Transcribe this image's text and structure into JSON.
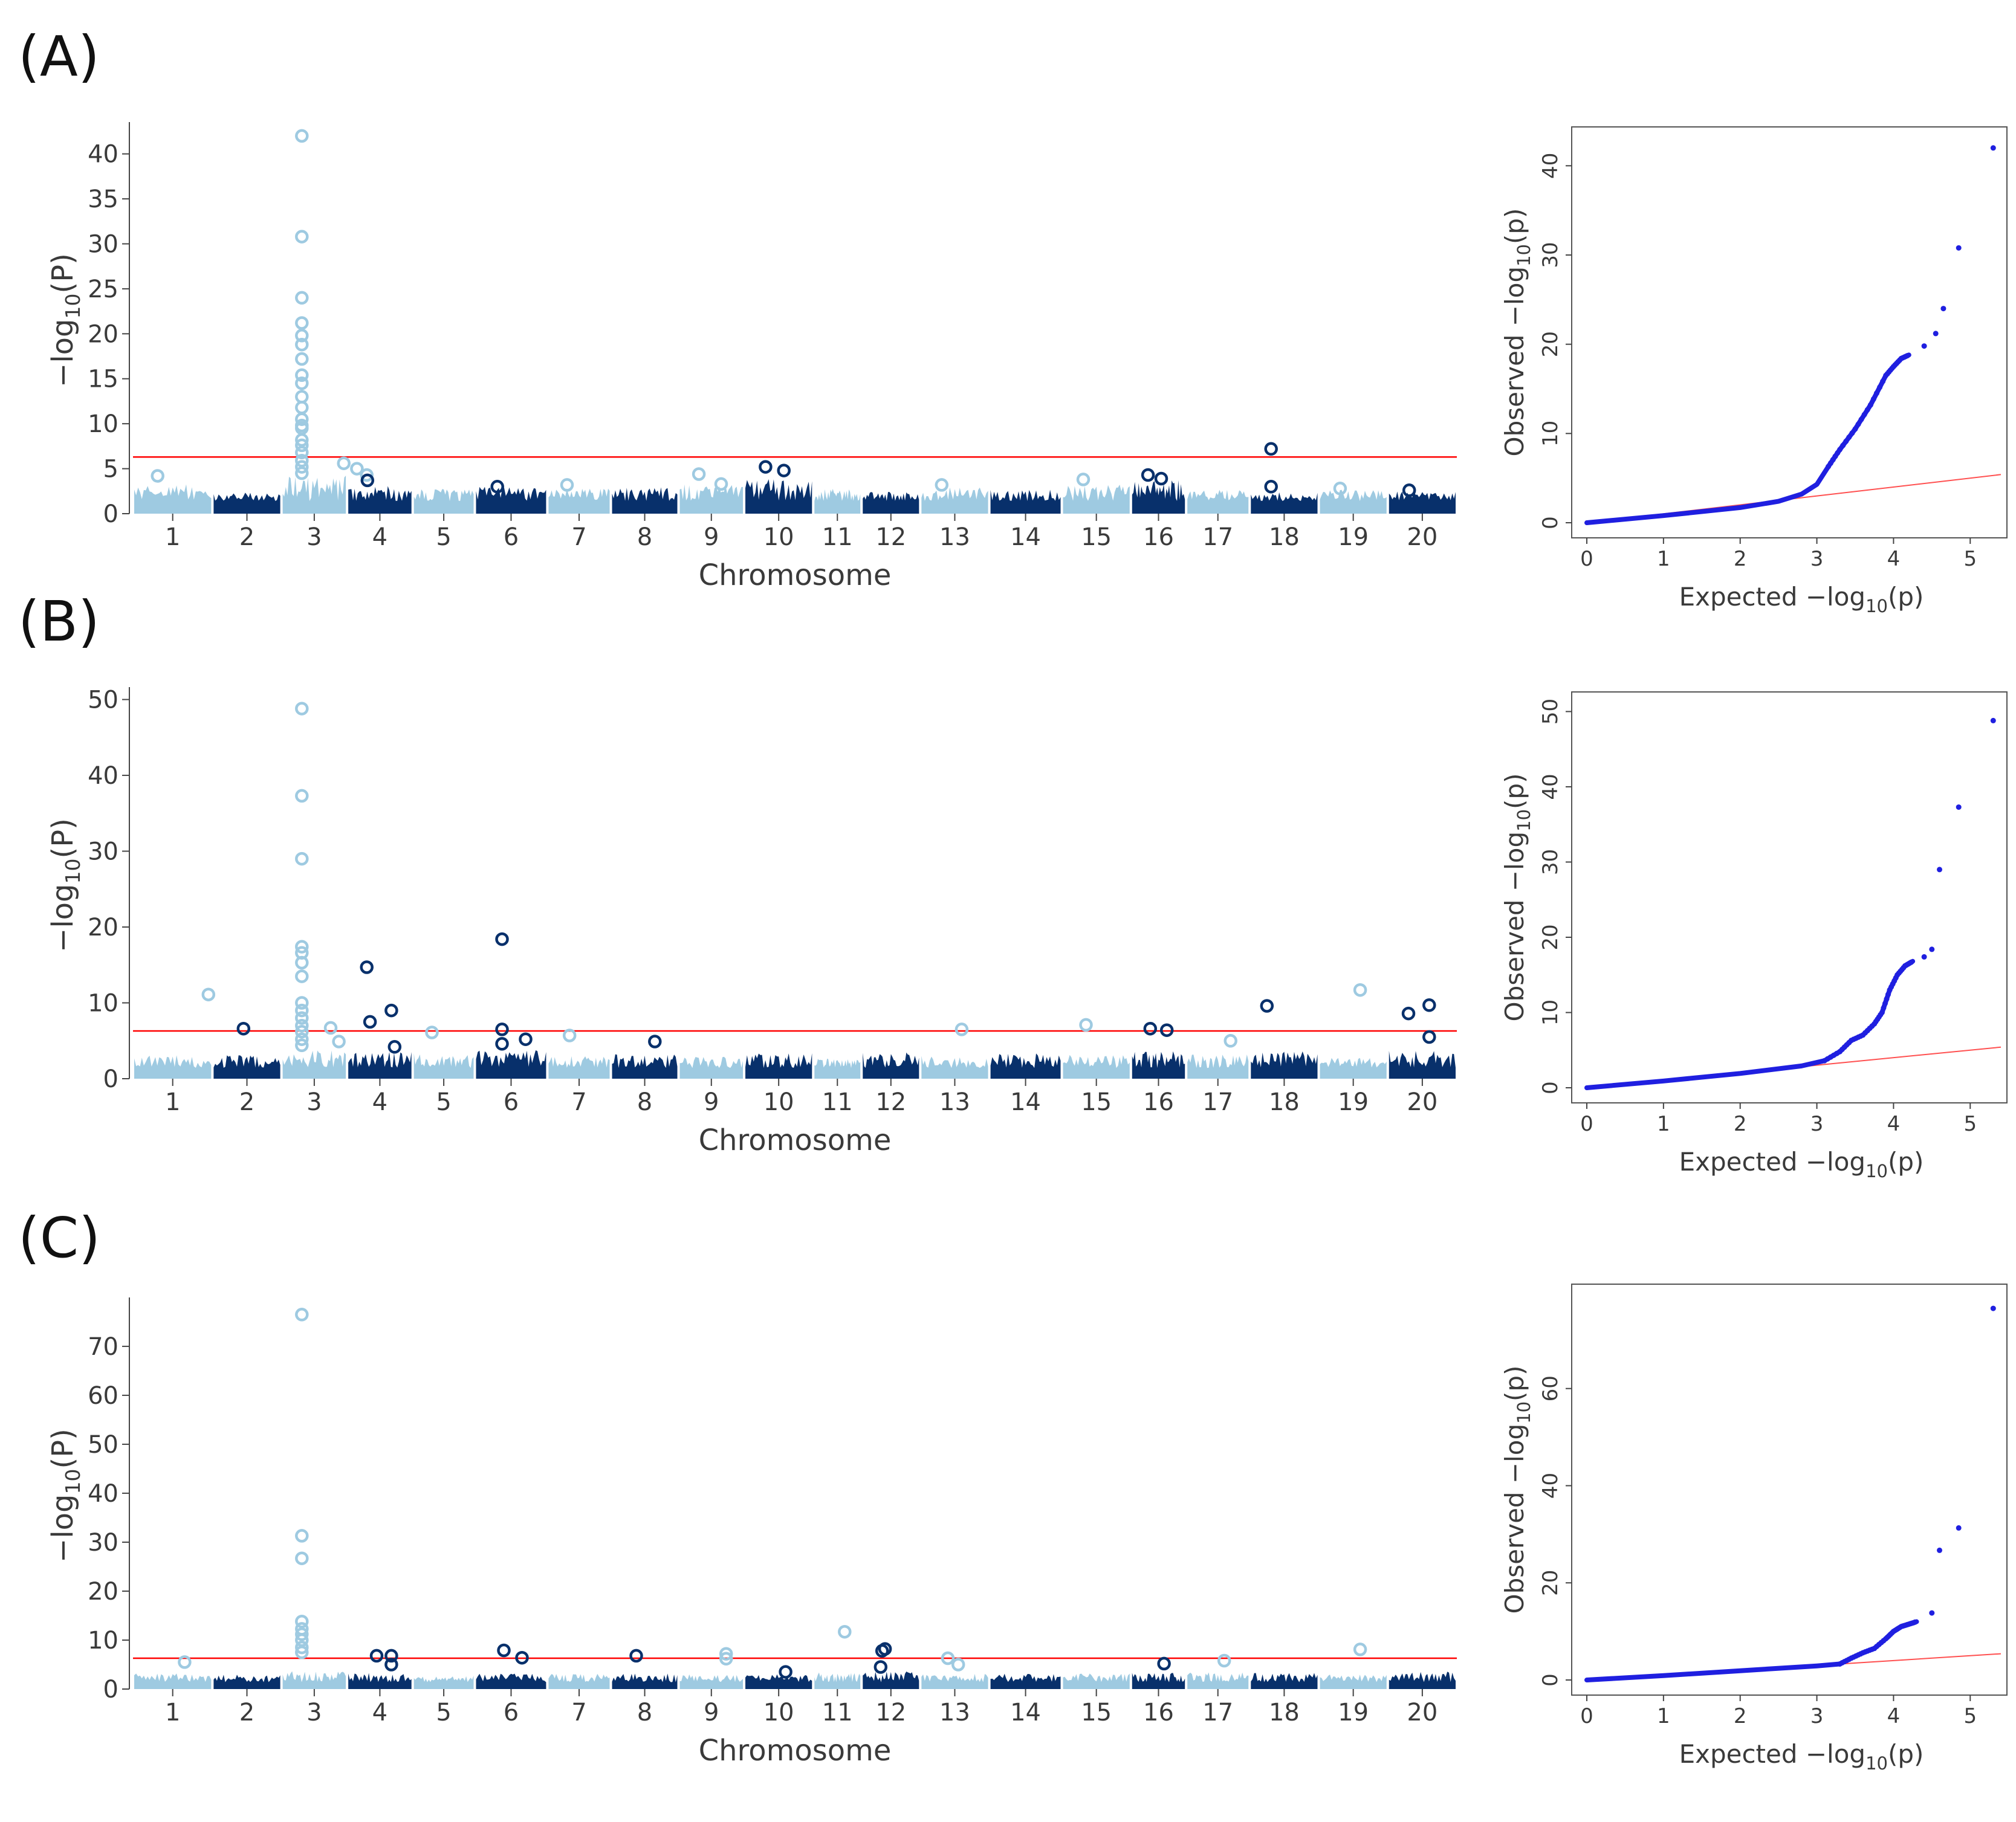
{
  "panels": [
    {
      "id": "A",
      "label": "(A)"
    },
    {
      "id": "B",
      "label": "(B)"
    },
    {
      "id": "C",
      "label": "(C)"
    }
  ],
  "colors": {
    "light": "#9ecae1",
    "dark": "#08306b",
    "threshold": "#ff0000",
    "qq_points": "#1f1fe0",
    "qq_line": "#ff5050"
  },
  "chart_data": [
    {
      "panel": "A",
      "type": "scatter",
      "subtype": "manhattan",
      "xlabel": "Chromosome",
      "ylabel": "−log10(P)",
      "categories": [
        "1",
        "2",
        "3",
        "4",
        "5",
        "6",
        "7",
        "8",
        "9",
        "10",
        "11",
        "12",
        "13",
        "14",
        "15",
        "16",
        "17",
        "18",
        "19",
        "20"
      ],
      "ylim": [
        0,
        43
      ],
      "yticks": [
        0,
        5,
        10,
        15,
        20,
        25,
        30,
        35,
        40
      ],
      "threshold": 6.3,
      "background_max": [
        3.6,
        2.6,
        4.8,
        3.4,
        3.0,
        3.3,
        3.1,
        3.2,
        3.6,
        4.6,
        3.0,
        2.6,
        3.2,
        2.9,
        3.7,
        4.2,
        2.9,
        2.6,
        2.9,
        2.7
      ],
      "points": [
        {
          "chr": 3,
          "y": 42
        },
        {
          "chr": 3,
          "y": 30.8
        },
        {
          "chr": 3,
          "y": 24
        },
        {
          "chr": 3,
          "y": 21.2
        },
        {
          "chr": 3,
          "y": 19.8
        },
        {
          "chr": 3,
          "y": 18.8
        },
        {
          "chr": 3,
          "y": 17.2
        },
        {
          "chr": 3,
          "y": 15.4
        },
        {
          "chr": 3,
          "y": 14.5
        },
        {
          "chr": 3,
          "y": 13
        },
        {
          "chr": 3,
          "y": 11.8
        },
        {
          "chr": 3,
          "y": 10.5
        },
        {
          "chr": 3,
          "y": 9.8
        },
        {
          "chr": 3,
          "y": 9.5
        },
        {
          "chr": 3,
          "y": 8.2
        },
        {
          "chr": 3,
          "y": 7.6
        },
        {
          "chr": 3,
          "y": 6.8
        },
        {
          "chr": 3,
          "y": 5.9
        },
        {
          "chr": 3,
          "y": 5.2
        },
        {
          "chr": 3,
          "y": 4.5
        },
        {
          "chr": 3,
          "off": 0.9,
          "y": 5.6
        },
        {
          "chr": 3,
          "off": 1.3,
          "y": 5.0
        },
        {
          "chr": 3,
          "off": 1.6,
          "y": 4.3
        },
        {
          "chr": 1,
          "y": 4.2
        },
        {
          "chr": 4,
          "y": 3.7
        },
        {
          "chr": 6,
          "y": 3.0
        },
        {
          "chr": 7,
          "y": 3.2
        },
        {
          "chr": 9,
          "y": 4.4
        },
        {
          "chr": 9,
          "off": 0.3,
          "y": 3.3
        },
        {
          "chr": 10,
          "y": 5.2
        },
        {
          "chr": 10,
          "off": 0.15,
          "y": 4.8
        },
        {
          "chr": 13,
          "y": 3.2
        },
        {
          "chr": 15,
          "y": 3.8
        },
        {
          "chr": 16,
          "y": 4.3
        },
        {
          "chr": 16,
          "off": 0.1,
          "y": 3.9
        },
        {
          "chr": 18,
          "y": 7.2
        },
        {
          "chr": 18,
          "y": 3.0
        },
        {
          "chr": 19,
          "y": 2.8
        },
        {
          "chr": 20,
          "y": 2.6
        }
      ]
    },
    {
      "panel": "A",
      "type": "scatter",
      "subtype": "qq",
      "xlabel": "Expected −log10(p)",
      "ylabel": "Observed −log10(p)",
      "xlim": [
        0,
        5.4
      ],
      "ylim": [
        0,
        43
      ],
      "xticks": [
        0,
        1,
        2,
        3,
        4,
        5
      ],
      "yticks": [
        0,
        10,
        20,
        30,
        40
      ],
      "curve": [
        [
          0,
          0
        ],
        [
          1,
          0.8
        ],
        [
          2,
          1.7
        ],
        [
          2.5,
          2.4
        ],
        [
          2.8,
          3.2
        ],
        [
          3.0,
          4.3
        ],
        [
          3.15,
          6.3
        ],
        [
          3.3,
          8.2
        ],
        [
          3.5,
          10.5
        ],
        [
          3.7,
          13.2
        ],
        [
          3.9,
          16.5
        ],
        [
          4.0,
          17.5
        ],
        [
          4.1,
          18.4
        ],
        [
          4.2,
          18.8
        ]
      ],
      "top_points": [
        [
          4.4,
          19.8
        ],
        [
          4.55,
          21.2
        ],
        [
          4.65,
          24
        ],
        [
          4.85,
          30.8
        ],
        [
          5.3,
          42
        ]
      ]
    },
    {
      "panel": "B",
      "type": "scatter",
      "subtype": "manhattan",
      "xlabel": "Chromosome",
      "ylabel": "−log10(P)",
      "categories": [
        "1",
        "2",
        "3",
        "4",
        "5",
        "6",
        "7",
        "8",
        "9",
        "10",
        "11",
        "12",
        "13",
        "14",
        "15",
        "16",
        "17",
        "18",
        "19",
        "20"
      ],
      "ylim": [
        0,
        51
      ],
      "yticks": [
        0,
        10,
        20,
        30,
        40,
        50
      ],
      "threshold": 6.3,
      "background_max": [
        3.5,
        3.4,
        4.2,
        3.9,
        3.8,
        4.2,
        3.3,
        3.6,
        3.2,
        3.7,
        3.0,
        3.9,
        3.4,
        3.7,
        3.5,
        4.3,
        3.5,
        4.0,
        3.0,
        4.1
      ],
      "points": [
        {
          "chr": 3,
          "y": 48.8
        },
        {
          "chr": 3,
          "y": 37.3
        },
        {
          "chr": 3,
          "y": 29
        },
        {
          "chr": 3,
          "y": 17.4
        },
        {
          "chr": 3,
          "y": 16.6
        },
        {
          "chr": 3,
          "y": 15.3
        },
        {
          "chr": 3,
          "y": 13.5
        },
        {
          "chr": 3,
          "y": 10
        },
        {
          "chr": 3,
          "y": 9
        },
        {
          "chr": 3,
          "y": 8
        },
        {
          "chr": 3,
          "y": 7
        },
        {
          "chr": 3,
          "y": 6.2
        },
        {
          "chr": 3,
          "y": 5.2
        },
        {
          "chr": 3,
          "y": 4.4
        },
        {
          "chr": 1,
          "off": 0.9,
          "y": 11.1
        },
        {
          "chr": 2,
          "off": -0.1,
          "y": 6.6
        },
        {
          "chr": 3,
          "off": 0.5,
          "y": 6.7
        },
        {
          "chr": 3,
          "off": 0.75,
          "y": 4.9
        },
        {
          "chr": 4,
          "off": -0.4,
          "y": 14.7
        },
        {
          "chr": 4,
          "off": -0.3,
          "y": 7.5
        },
        {
          "chr": 4,
          "off": 0.35,
          "y": 9
        },
        {
          "chr": 4,
          "off": 0.45,
          "y": 4.2
        },
        {
          "chr": 5,
          "y": 6.1
        },
        {
          "chr": 6,
          "off": -0.25,
          "y": 18.4
        },
        {
          "chr": 6,
          "off": -0.25,
          "y": 6.5
        },
        {
          "chr": 6,
          "off": -0.25,
          "y": 4.6
        },
        {
          "chr": 6,
          "off": 0.4,
          "y": 5.2
        },
        {
          "chr": 7,
          "off": -0.3,
          "y": 5.7
        },
        {
          "chr": 8,
          "off": 0.3,
          "y": 4.9
        },
        {
          "chr": 13,
          "off": 0.2,
          "y": 6.5
        },
        {
          "chr": 15,
          "off": -0.3,
          "y": 7.1
        },
        {
          "chr": 16,
          "off": -0.3,
          "y": 6.6
        },
        {
          "chr": 16,
          "off": 0.3,
          "y": 6.4
        },
        {
          "chr": 17,
          "off": 0.4,
          "y": 5.0
        },
        {
          "chr": 18,
          "off": -0.5,
          "y": 9.6
        },
        {
          "chr": 19,
          "off": 0.2,
          "y": 11.7
        },
        {
          "chr": 20,
          "off": -0.4,
          "y": 8.6
        },
        {
          "chr": 20,
          "off": 0.2,
          "y": 9.7
        },
        {
          "chr": 20,
          "off": 0.2,
          "y": 5.5
        }
      ]
    },
    {
      "panel": "B",
      "type": "scatter",
      "subtype": "qq",
      "xlabel": "Expected −log10(p)",
      "ylabel": "Observed −log10(p)",
      "xlim": [
        0,
        5.4
      ],
      "ylim": [
        0,
        51
      ],
      "xticks": [
        0,
        1,
        2,
        3,
        4,
        5
      ],
      "yticks": [
        0,
        10,
        20,
        30,
        40,
        50
      ],
      "curve": [
        [
          0,
          0
        ],
        [
          1,
          0.9
        ],
        [
          2,
          1.9
        ],
        [
          2.8,
          2.9
        ],
        [
          3.1,
          3.6
        ],
        [
          3.3,
          4.8
        ],
        [
          3.45,
          6.3
        ],
        [
          3.6,
          7.0
        ],
        [
          3.75,
          8.5
        ],
        [
          3.85,
          10
        ],
        [
          3.95,
          13
        ],
        [
          4.05,
          15
        ],
        [
          4.15,
          16.2
        ],
        [
          4.25,
          16.8
        ]
      ],
      "top_points": [
        [
          4.4,
          17.4
        ],
        [
          4.5,
          18.4
        ],
        [
          4.6,
          29
        ],
        [
          4.85,
          37.3
        ],
        [
          5.3,
          48.8
        ]
      ]
    },
    {
      "panel": "C",
      "type": "scatter",
      "subtype": "manhattan",
      "xlabel": "Chromosome",
      "ylabel": "−log10(P)",
      "categories": [
        "1",
        "2",
        "3",
        "4",
        "5",
        "6",
        "7",
        "8",
        "9",
        "10",
        "11",
        "12",
        "13",
        "14",
        "15",
        "16",
        "17",
        "18",
        "19",
        "20"
      ],
      "ylim": [
        0,
        79
      ],
      "yticks": [
        0,
        10,
        20,
        30,
        40,
        50,
        60,
        70
      ],
      "threshold": 6.3,
      "background_max": [
        3.6,
        3.2,
        4.1,
        3.6,
        3.2,
        3.5,
        3.4,
        3.7,
        3.3,
        3.3,
        3.8,
        4.0,
        3.4,
        3.5,
        3.5,
        3.7,
        3.8,
        3.7,
        3.3,
        4.0
      ],
      "points": [
        {
          "chr": 3,
          "y": 76.5
        },
        {
          "chr": 3,
          "y": 31.3
        },
        {
          "chr": 3,
          "y": 26.7
        },
        {
          "chr": 3,
          "y": 13.8
        },
        {
          "chr": 3,
          "y": 12.3
        },
        {
          "chr": 3,
          "y": 11.2
        },
        {
          "chr": 3,
          "y": 10
        },
        {
          "chr": 3,
          "y": 8.5
        },
        {
          "chr": 3,
          "y": 7.5
        },
        {
          "chr": 1,
          "off": 0.3,
          "y": 5.5
        },
        {
          "chr": 4,
          "off": -0.1,
          "y": 6.8
        },
        {
          "chr": 4,
          "off": 0.35,
          "y": 6.8
        },
        {
          "chr": 4,
          "off": 0.35,
          "y": 5.0
        },
        {
          "chr": 6,
          "off": -0.2,
          "y": 7.9
        },
        {
          "chr": 6,
          "off": 0.3,
          "y": 6.4
        },
        {
          "chr": 8,
          "off": -0.25,
          "y": 6.8
        },
        {
          "chr": 9,
          "off": 0.45,
          "y": 7.2
        },
        {
          "chr": 9,
          "off": 0.45,
          "y": 6.2
        },
        {
          "chr": 10,
          "off": 0.2,
          "y": 3.5
        },
        {
          "chr": 11,
          "off": 0.3,
          "y": 11.7
        },
        {
          "chr": 12,
          "off": -0.3,
          "y": 7.8
        },
        {
          "chr": 12,
          "off": -0.2,
          "y": 8.2
        },
        {
          "chr": 12,
          "off": -0.35,
          "y": 4.5
        },
        {
          "chr": 13,
          "off": -0.2,
          "y": 6.3
        },
        {
          "chr": 13,
          "off": 0.1,
          "y": 5.0
        },
        {
          "chr": 16,
          "off": 0.2,
          "y": 5.2
        },
        {
          "chr": 17,
          "off": 0.2,
          "y": 5.8
        },
        {
          "chr": 19,
          "off": 0.2,
          "y": 8.1
        }
      ]
    },
    {
      "panel": "C",
      "type": "scatter",
      "subtype": "qq",
      "xlabel": "Expected −log10(p)",
      "ylabel": "Observed −log10(p)",
      "xlim": [
        0,
        5.4
      ],
      "ylim": [
        0,
        79
      ],
      "xticks": [
        0,
        1,
        2,
        3,
        4,
        5
      ],
      "yticks": [
        0,
        20,
        40,
        60
      ],
      "curve": [
        [
          0,
          0
        ],
        [
          1,
          0.9
        ],
        [
          2,
          1.9
        ],
        [
          3,
          2.9
        ],
        [
          3.3,
          3.3
        ],
        [
          3.45,
          4.5
        ],
        [
          3.6,
          5.6
        ],
        [
          3.75,
          6.5
        ],
        [
          3.9,
          8.5
        ],
        [
          4.0,
          10
        ],
        [
          4.1,
          11
        ],
        [
          4.2,
          11.5
        ],
        [
          4.3,
          12
        ]
      ],
      "top_points": [
        [
          4.5,
          13.8
        ],
        [
          4.6,
          26.7
        ],
        [
          4.85,
          31.3
        ],
        [
          5.3,
          76.5
        ]
      ]
    }
  ]
}
